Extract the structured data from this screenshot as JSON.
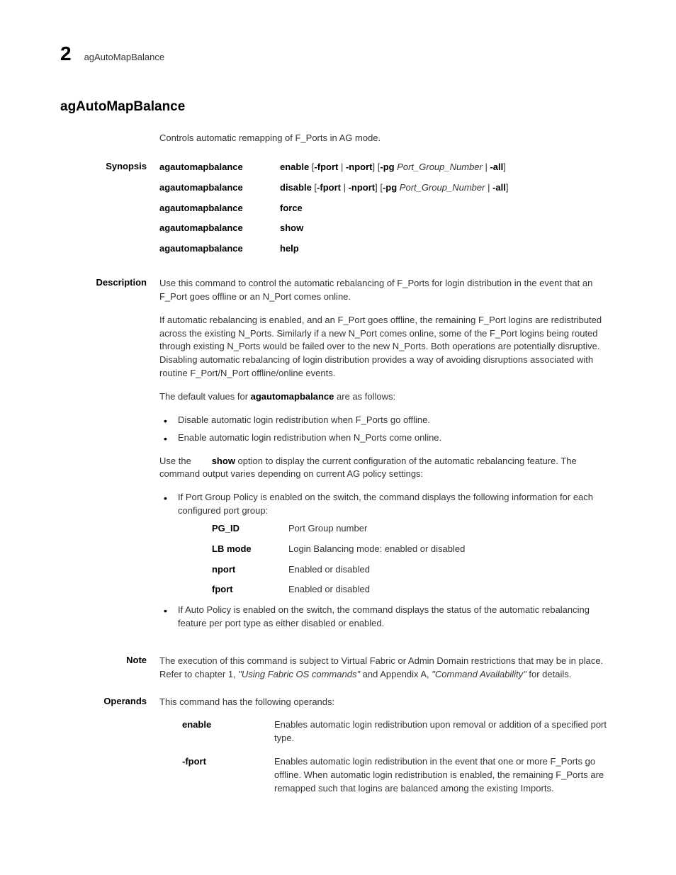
{
  "header": {
    "chapter": "2",
    "command": "agAutoMapBalance"
  },
  "title": "agAutoMapBalance",
  "intro": "Controls automatic remapping of F_Ports in AG mode.",
  "synopsis": {
    "label": "Synopsis",
    "rows": [
      {
        "cmd": "agautomapbalance",
        "action": "enable",
        "args_prefix": "  [",
        "opt1": "-fport",
        "sep1": " | ",
        "opt2": "-nport",
        "mid": "] [",
        "opt3": "-pg",
        "param": " Port_Group_Number",
        "end": " | ",
        "opt4": "-all",
        "close": "]"
      },
      {
        "cmd": "agautomapbalance",
        "action": "disable",
        "args_prefix": " [",
        "opt1": "-fport",
        "sep1": " | ",
        "opt2": "-nport",
        "mid": "] [",
        "opt3": "-pg",
        "param": " Port_Group_Number",
        "end": " | ",
        "opt4": "-all",
        "close": "]"
      },
      {
        "cmd": "agautomapbalance",
        "action": "force"
      },
      {
        "cmd": "agautomapbalance",
        "action": "show"
      },
      {
        "cmd": "agautomapbalance",
        "action": "help"
      }
    ]
  },
  "description": {
    "label": "Description",
    "p1": "Use this command to control the automatic rebalancing of F_Ports for login distribution in the event that an F_Port goes offline or an N_Port comes online.",
    "p2": "If automatic rebalancing is enabled, and an F_Port goes offline, the remaining F_Port logins are redistributed across the existing N_Ports. Similarly if a new N_Port comes online, some of the F_Port logins being routed through existing N_Ports would be failed over to the new N_Ports. Both operations are potentially disruptive. Disabling automatic rebalancing of login distribution provides a way of avoiding disruptions associated with routine F_Port/N_Port offline/online events.",
    "p3_pre": "The default values for ",
    "p3_bold": "agautomapbalance",
    "p3_post": " are as follows:",
    "defaults": [
      "Disable automatic login redistribution when F_Ports go offline.",
      "Enable automatic login redistribution when N_Ports come online."
    ],
    "p4_pre": "Use the        ",
    "p4_bold": "show",
    "p4_post": " option to display the current configuration of the automatic rebalancing feature. The command output varies depending on current AG policy settings:",
    "policy_bullet1": "If Port Group Policy is enabled on the switch, the command displays the following information for each configured port group:",
    "defs": [
      {
        "term": "PG_ID",
        "desc": "Port Group number"
      },
      {
        "term": "LB mode",
        "desc": "Login Balancing mode: enabled or disabled"
      },
      {
        "term": "nport",
        "desc": "Enabled or disabled"
      },
      {
        "term": "fport",
        "desc": "Enabled or disabled"
      }
    ],
    "policy_bullet2": "If Auto Policy is enabled on the switch, the command displays the status of the automatic rebalancing feature per port type as either disabled or enabled."
  },
  "note": {
    "label": "Note",
    "text_pre": "The execution of this command is subject to Virtual Fabric or Admin Domain restrictions that may be in place. Refer to chapter 1, ",
    "ref1": "\"Using Fabric OS commands\"",
    "mid": " and Appendix A, ",
    "ref2": "\"Command Availability\"",
    "post": " for details."
  },
  "operands": {
    "label": "Operands",
    "intro": "This command has the following operands:",
    "items": [
      {
        "term": "enable",
        "desc": "Enables automatic login redistribution upon removal or addition of a specified port type."
      },
      {
        "term": "-fport",
        "desc": "Enables automatic login redistribution in the event that one or more F_Ports go offline. When automatic login redistribution is enabled, the remaining F_Ports are remapped such that logins are balanced among the existing Imports."
      }
    ]
  }
}
